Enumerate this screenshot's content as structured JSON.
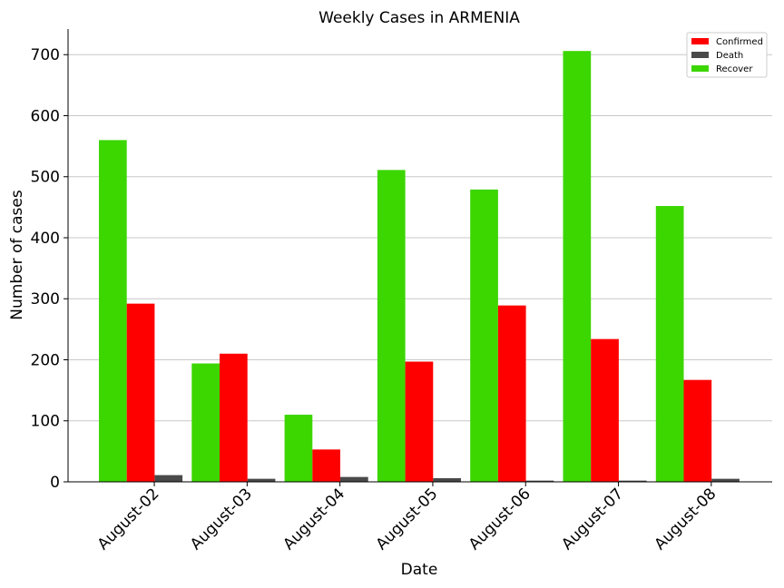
{
  "chart_data": {
    "type": "bar",
    "title": "Weekly Cases in ARMENIA",
    "xlabel": "Date",
    "ylabel": "Number of cases",
    "categories": [
      "August-02",
      "August-03",
      "August-04",
      "August-05",
      "August-06",
      "August-07",
      "August-08"
    ],
    "series": [
      {
        "name": "Recover",
        "color": "#3cd600",
        "values": [
          560,
          194,
          110,
          511,
          479,
          706,
          452
        ]
      },
      {
        "name": "Confirmed",
        "color": "#ff0000",
        "values": [
          292,
          210,
          53,
          197,
          289,
          234,
          167
        ]
      },
      {
        "name": "Death",
        "color": "#4a4a4a",
        "values": [
          11,
          5,
          8,
          6,
          2,
          2,
          5
        ]
      }
    ],
    "legend_order": [
      "Confirmed",
      "Death",
      "Recover"
    ],
    "yticks": [
      0,
      100,
      200,
      300,
      400,
      500,
      600,
      700
    ],
    "ylim": [
      0,
      742
    ],
    "grid": "horizontal",
    "legend_position": "top-right"
  }
}
